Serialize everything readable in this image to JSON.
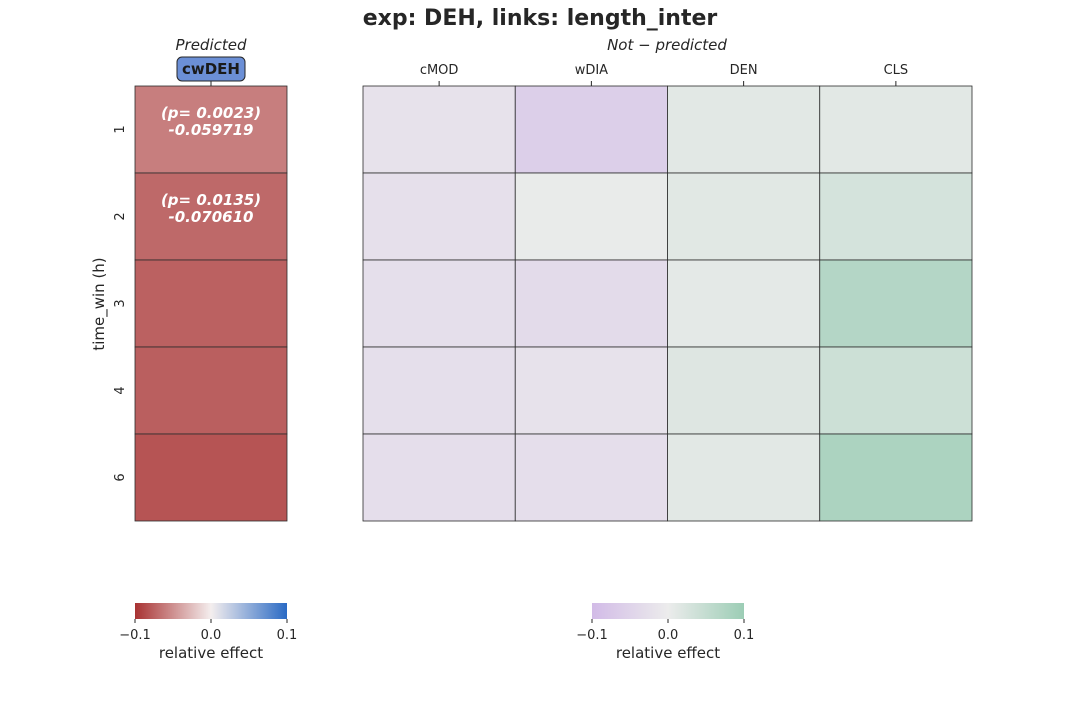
{
  "chart_data": {
    "type": "heatmap",
    "title": "exp: DEH, links: length_inter",
    "ylabel": "time_win (h)",
    "rows": [
      "1",
      "2",
      "3",
      "4",
      "6"
    ],
    "panels": [
      {
        "header": "Predicted",
        "columns": [
          "cwDEH"
        ],
        "values": [
          [
            -0.059719
          ],
          [
            -0.07061
          ],
          [
            -0.075
          ],
          [
            -0.076
          ],
          [
            -0.082
          ]
        ],
        "annotations": [
          [
            "(p= 0.0023)\n-0.059719"
          ],
          [
            "(p= 0.0135)\n-0.070610"
          ],
          [
            ""
          ],
          [
            ""
          ],
          [
            ""
          ]
        ],
        "colormap": [
          "#a83232",
          "#f4eeee",
          "#2a6ac4"
        ],
        "vmin": -0.1,
        "vmax": 0.1,
        "colorbar": {
          "ticks": [
            "−0.1",
            "0.0",
            "0.1"
          ],
          "label": "relative effect"
        }
      },
      {
        "header": "Not − predicted",
        "columns": [
          "cMOD",
          "wDIA",
          "DEN",
          "CLS"
        ],
        "values": [
          [
            -0.02,
            -0.06,
            0.012,
            0.012
          ],
          [
            -0.024,
            0.004,
            0.014,
            0.03
          ],
          [
            -0.026,
            -0.034,
            0.01,
            0.07
          ],
          [
            -0.026,
            -0.02,
            0.018,
            0.04
          ],
          [
            -0.028,
            -0.028,
            0.012,
            0.08
          ]
        ],
        "annotations": [],
        "colormap": [
          "#d2bbe7",
          "#ececec",
          "#9ccdb5"
        ],
        "vmin": -0.1,
        "vmax": 0.1,
        "colorbar": {
          "ticks": [
            "−0.1",
            "0.0",
            "0.1"
          ],
          "label": "relative effect"
        }
      }
    ],
    "predicted_column_highlight": "#6b8fd6"
  }
}
